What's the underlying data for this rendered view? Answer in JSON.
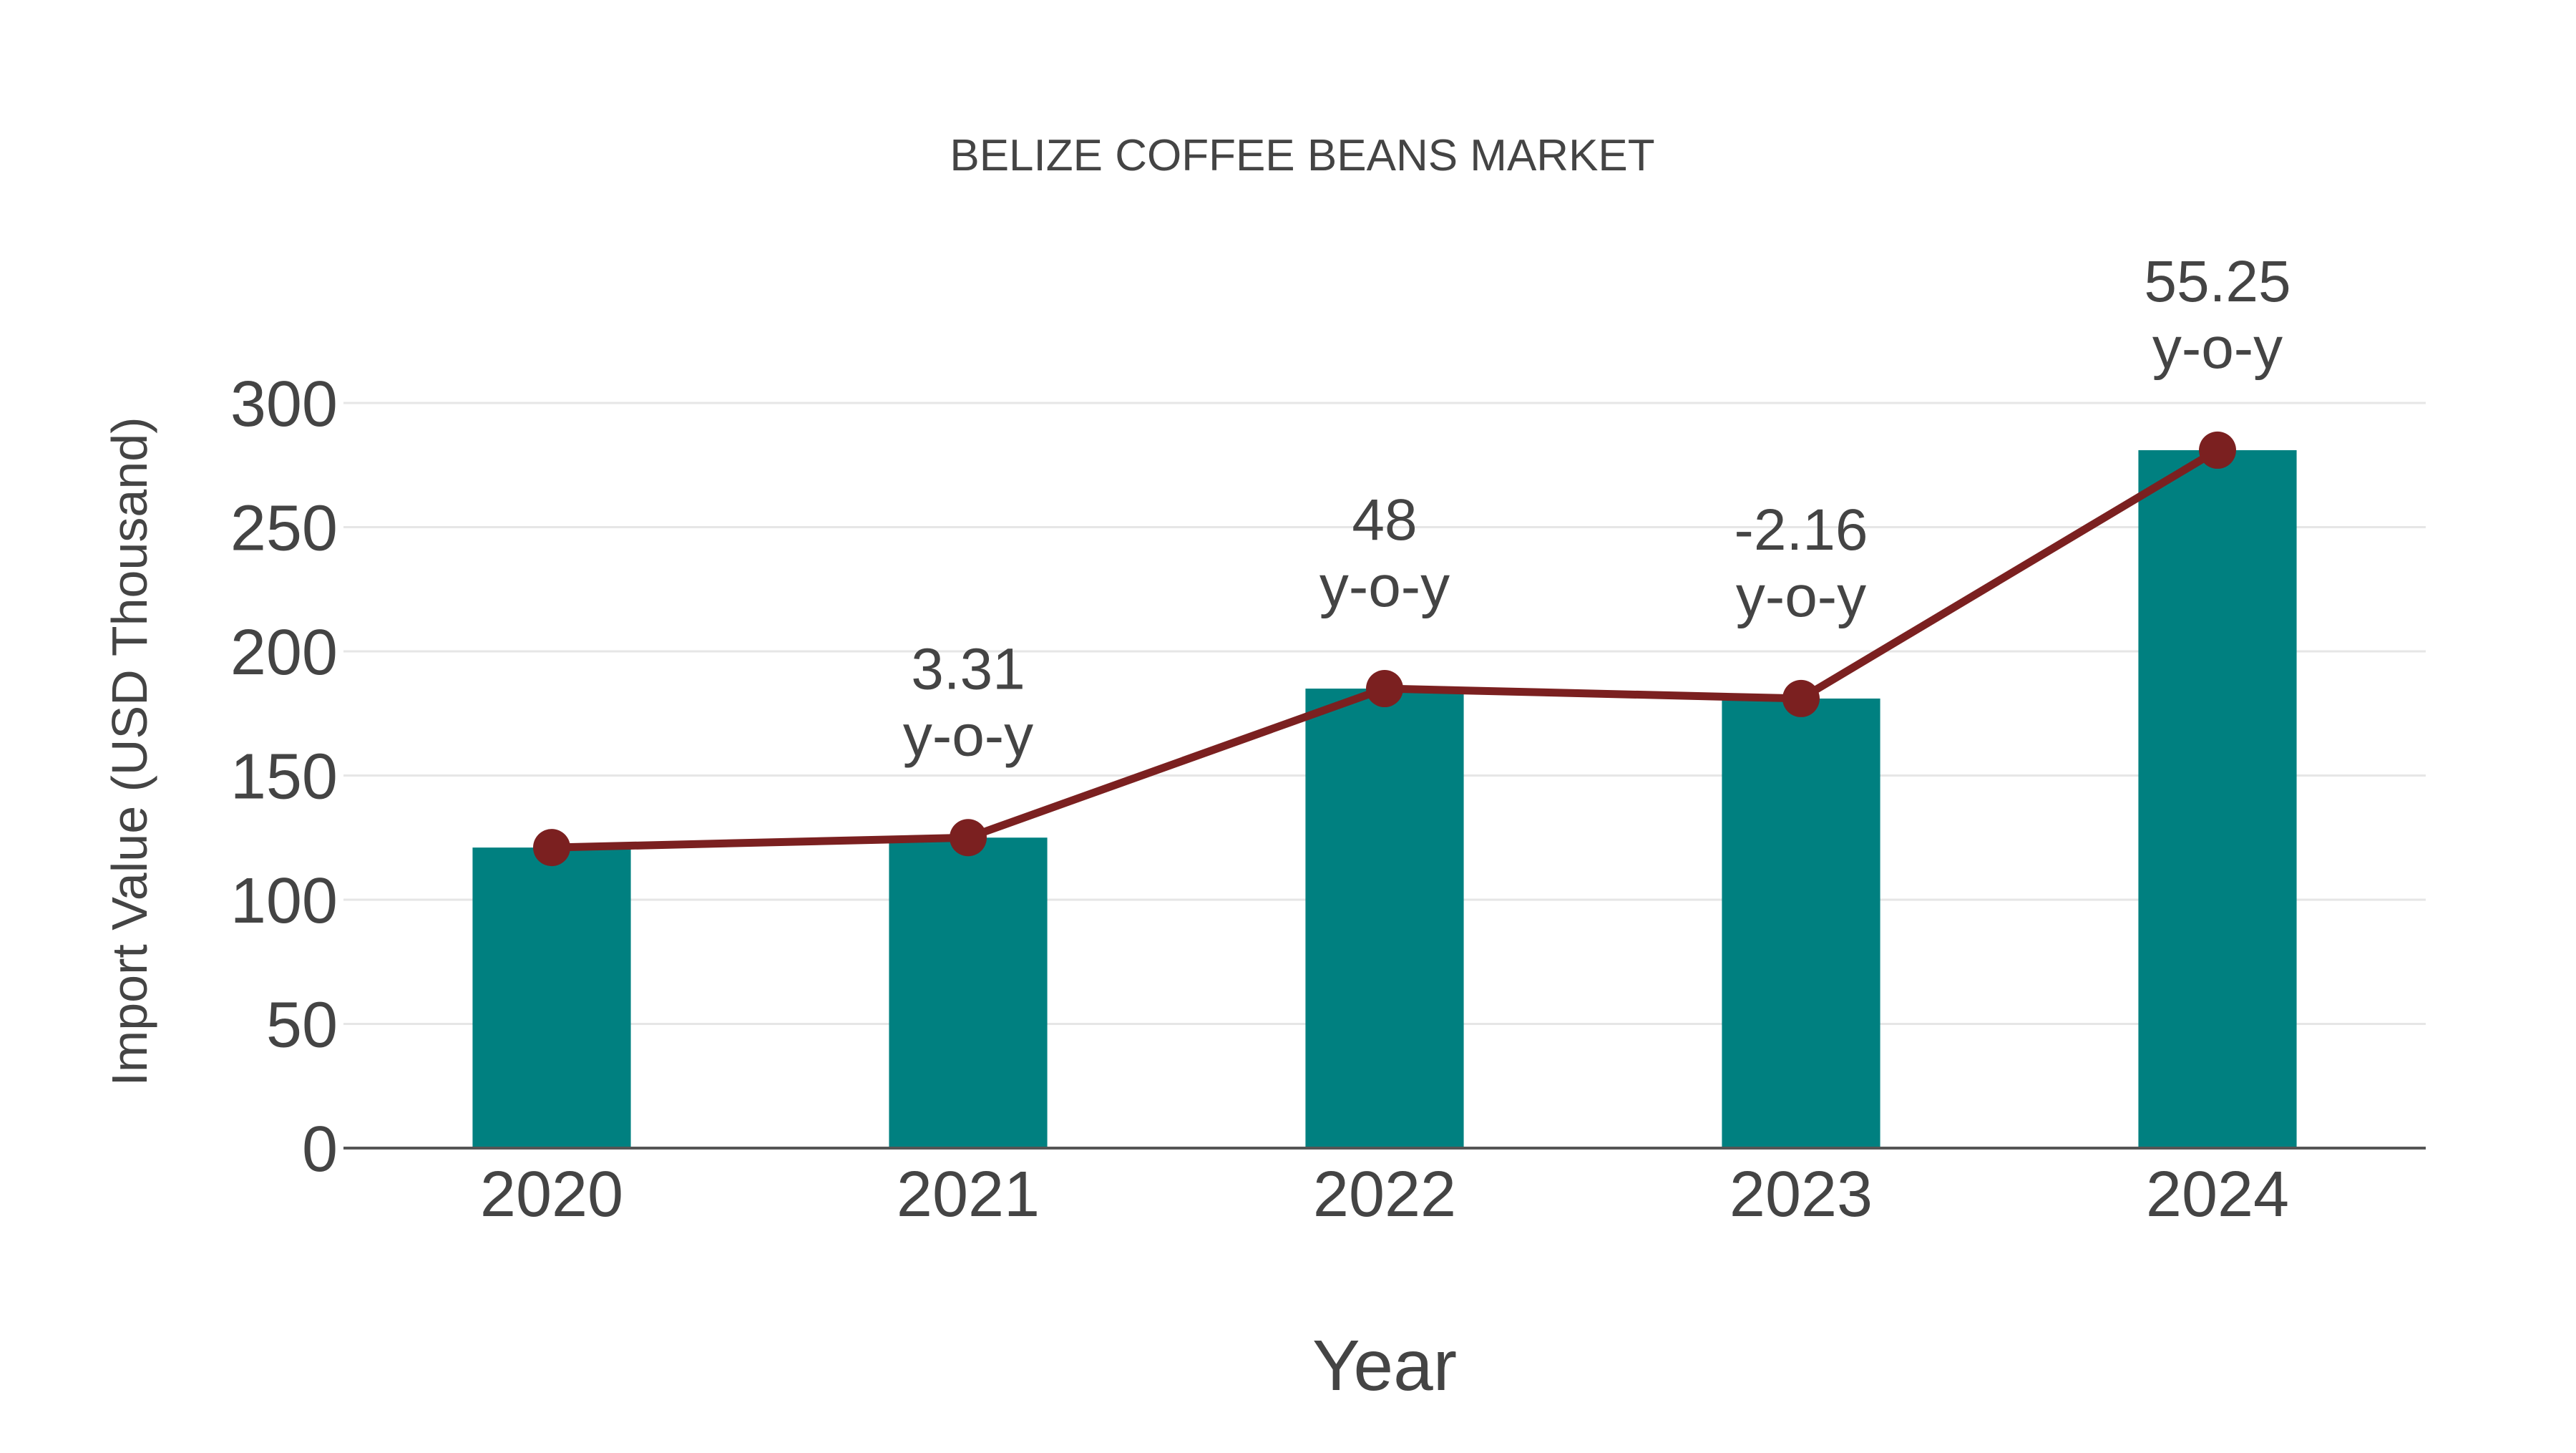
{
  "chart_data": {
    "type": "bar",
    "title": "BELIZE COFFEE BEANS MARKET",
    "xlabel": "Year",
    "ylabel": "Import Value (USD Thousand)",
    "categories": [
      "2020",
      "2021",
      "2022",
      "2023",
      "2024"
    ],
    "series": [
      {
        "name": "Import Value",
        "type": "bar",
        "color": "#008080",
        "values": [
          121,
          125,
          185,
          181,
          281
        ]
      },
      {
        "name": "Trend",
        "type": "line",
        "color": "#7b2020",
        "values": [
          121,
          125,
          185,
          181,
          281
        ]
      }
    ],
    "annotations": [
      {
        "category": "2021",
        "value": "3.31",
        "suffix": "y-o-y"
      },
      {
        "category": "2022",
        "value": "48",
        "suffix": "y-o-y"
      },
      {
        "category": "2023",
        "value": "-2.16",
        "suffix": "y-o-y"
      },
      {
        "category": "2024",
        "value": "55.25",
        "suffix": "y-o-y"
      }
    ],
    "yticks": [
      0,
      50,
      100,
      150,
      200,
      250,
      300
    ],
    "ylim": [
      0,
      300
    ],
    "grid": true,
    "legend": "none"
  },
  "colors": {
    "bar": "#008080",
    "line": "#7b2020",
    "text": "#444444",
    "grid": "#e6e6e6",
    "axis": "#555555"
  }
}
